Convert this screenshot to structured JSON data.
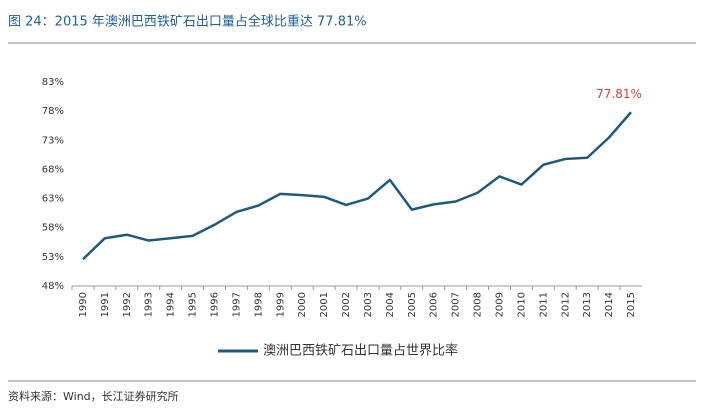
{
  "chart_data": {
    "type": "line",
    "title": "图 24：2015 年澳洲巴西铁矿石出口量占全球比重达 77.81%",
    "source": "资料来源：Wind，长江证券研究所",
    "categories": [
      "1990",
      "1991",
      "1992",
      "1993",
      "1994",
      "1995",
      "1996",
      "1997",
      "1998",
      "1999",
      "2000",
      "2001",
      "2002",
      "2003",
      "2004",
      "2005",
      "2006",
      "2007",
      "2008",
      "2009",
      "2010",
      "2011",
      "2012",
      "2013",
      "2014",
      "2015"
    ],
    "series": [
      {
        "name": "澳洲巴西铁矿石出口量占世界比率",
        "color": "#1d5a82",
        "values": [
          52.6,
          56.2,
          56.8,
          55.8,
          56.2,
          56.6,
          58.5,
          60.7,
          61.8,
          63.8,
          63.6,
          63.3,
          61.9,
          63.0,
          66.2,
          61.1,
          62.0,
          62.5,
          64.0,
          66.8,
          65.4,
          68.8,
          69.8,
          70.0,
          73.5,
          77.81
        ],
        "value_labels": [
          null,
          null,
          null,
          null,
          null,
          null,
          null,
          null,
          null,
          null,
          null,
          null,
          null,
          null,
          null,
          null,
          null,
          null,
          null,
          null,
          null,
          null,
          null,
          null,
          null,
          "77.81%"
        ],
        "value_label_color": "#d9403a"
      }
    ],
    "ylim": [
      48,
      83
    ],
    "yticks": [
      {
        "value": 48,
        "label": "48%"
      },
      {
        "value": 53,
        "label": "53%"
      },
      {
        "value": 58,
        "label": "58%"
      },
      {
        "value": 63,
        "label": "63%"
      },
      {
        "value": 68,
        "label": "68%"
      },
      {
        "value": 73,
        "label": "73%"
      },
      {
        "value": 78,
        "label": "78%"
      },
      {
        "value": 83,
        "label": "83%"
      }
    ],
    "grid": false,
    "legend": "bottom"
  }
}
